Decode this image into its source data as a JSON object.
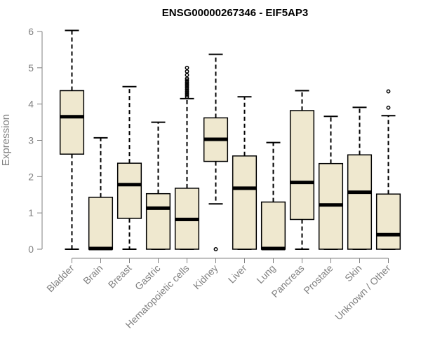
{
  "chart_data": {
    "type": "boxplot",
    "title": "ENSG00000267346 - EIF5AP3",
    "ylabel": "Expression",
    "xlabel": "",
    "ylim": [
      0,
      6
    ],
    "yticks": [
      0,
      1,
      2,
      3,
      4,
      5,
      6
    ],
    "grid": false,
    "box_color": "#efe8cf",
    "categories": [
      "Bladder",
      "Brain",
      "Breast",
      "Gastric",
      "Hematopoietic cells",
      "Kidney",
      "Liver",
      "Lung",
      "Pancreas",
      "Prostate",
      "Skin",
      "Unknown / Other"
    ],
    "boxes": [
      {
        "min": 0,
        "q1": 2.62,
        "median": 3.65,
        "q3": 4.37,
        "max": 6.03,
        "outliers": []
      },
      {
        "min": 0,
        "q1": 0,
        "median": 0.02,
        "q3": 1.43,
        "max": 3.07,
        "outliers": []
      },
      {
        "min": 0,
        "q1": 0.85,
        "median": 1.78,
        "q3": 2.37,
        "max": 4.48,
        "outliers": []
      },
      {
        "min": 0,
        "q1": 0,
        "median": 1.13,
        "q3": 1.53,
        "max": 3.5,
        "outliers": []
      },
      {
        "min": 0,
        "q1": 0,
        "median": 0.82,
        "q3": 1.68,
        "max": 4.15,
        "outliers": [
          4.2,
          4.25,
          4.3,
          4.35,
          4.4,
          4.45,
          4.5,
          4.55,
          4.6,
          4.65,
          4.7,
          4.8,
          4.9,
          5.0
        ]
      },
      {
        "min": 1.25,
        "q1": 2.42,
        "median": 3.03,
        "q3": 3.62,
        "max": 5.37,
        "outliers": [
          0
        ]
      },
      {
        "min": 0,
        "q1": 0,
        "median": 1.68,
        "q3": 2.57,
        "max": 4.2,
        "outliers": []
      },
      {
        "min": 0,
        "q1": 0,
        "median": 0.02,
        "q3": 1.3,
        "max": 2.94,
        "outliers": []
      },
      {
        "min": 0,
        "q1": 0.82,
        "median": 1.84,
        "q3": 3.82,
        "max": 4.37,
        "outliers": []
      },
      {
        "min": 0,
        "q1": 0,
        "median": 1.22,
        "q3": 2.36,
        "max": 3.66,
        "outliers": []
      },
      {
        "min": 0,
        "q1": 0,
        "median": 1.57,
        "q3": 2.6,
        "max": 3.91,
        "outliers": []
      },
      {
        "min": 0,
        "q1": 0,
        "median": 0.4,
        "q3": 1.52,
        "max": 3.68,
        "outliers": [
          3.9,
          4.35
        ]
      }
    ]
  }
}
